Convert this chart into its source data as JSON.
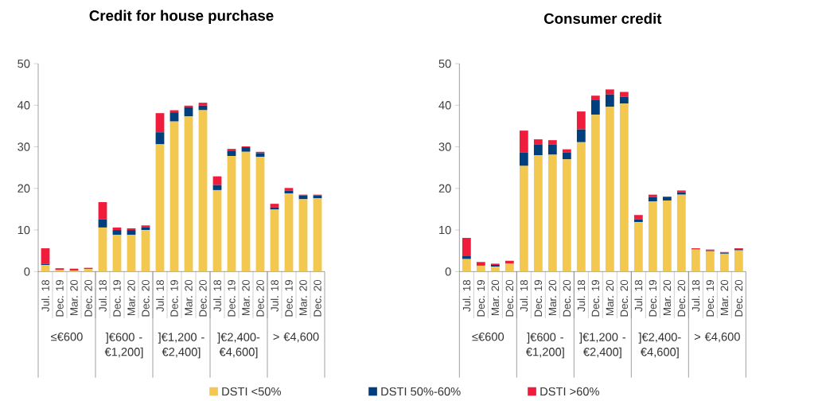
{
  "chart_data": [
    {
      "type": "bar",
      "stacked": true,
      "title": "Credit for house purchase",
      "legend": "bottom",
      "categories": [
        "Jul. 18",
        "Dec. 19",
        "Mar. 20",
        "Dec. 20",
        "Jul. 18",
        "Dec. 19",
        "Mar. 20",
        "Dec. 20",
        "Jul. 18",
        "Dec. 19",
        "Mar. 20",
        "Dec. 20",
        "Jul. 18",
        "Dec. 19",
        "Mar. 20",
        "Dec. 20",
        "Jul. 18",
        "Dec. 19",
        "Mar. 20",
        "Dec. 20"
      ],
      "annotations": [
        "≤€600",
        "]€600 - €1,200]",
        "]€1,200 - €2,400]",
        "]€2,400- €4,600]",
        "> €4,600"
      ],
      "ylim": [
        0,
        50
      ],
      "yticks": [
        0,
        10,
        20,
        30,
        40,
        50
      ],
      "series": [
        {
          "name": "DSTI <50%",
          "color": "#f2c851",
          "values": [
            1.6,
            0.4,
            0.2,
            0.6,
            10.6,
            8.8,
            8.8,
            10.0,
            30.6,
            36.1,
            37.3,
            38.8,
            19.6,
            27.8,
            28.8,
            27.6,
            14.9,
            18.8,
            17.4,
            17.6
          ]
        },
        {
          "name": "DSTI 50%-60%",
          "color": "#003f7d",
          "values": [
            0.3,
            null,
            null,
            null,
            2.0,
            1.2,
            1.2,
            0.6,
            2.9,
            2.2,
            2.2,
            1.1,
            1.2,
            1.3,
            1.1,
            0.9,
            0.5,
            0.7,
            0.9,
            0.7
          ]
        },
        {
          "name": "DSTI >60%",
          "color": "#ef1c3b",
          "values": [
            3.7,
            0.4,
            0.5,
            0.3,
            4.1,
            0.6,
            0.4,
            0.5,
            4.6,
            0.5,
            0.4,
            0.7,
            2.1,
            0.4,
            0.2,
            0.3,
            0.9,
            0.6,
            0.2,
            0.2
          ]
        }
      ]
    },
    {
      "type": "bar",
      "stacked": true,
      "title": "Consumer credit",
      "categories": [
        "Jul. 18",
        "Dec. 19",
        "Mar. 20",
        "Dec. 20",
        "Jul. 18",
        "Dec. 19",
        "Mar. 20",
        "Dec. 20",
        "Jul. 18",
        "Dec. 19",
        "Mar. 20",
        "Dec. 20",
        "Jul. 18",
        "Dec. 19",
        "Mar. 20",
        "Dec. 20",
        "Jul. 18",
        "Dec. 19",
        "Mar. 20",
        "Dec. 20"
      ],
      "annotations": [
        "≤€600",
        "]€600 - €1,200]",
        "]€1,200 - €2,400]",
        "]€2,400- €4,600]",
        "> €4,600"
      ],
      "ylim": [
        0,
        50
      ],
      "yticks": [
        0,
        10,
        20,
        30,
        40,
        50
      ],
      "series": [
        {
          "color": "#f2c851",
          "values": [
            3.0,
            1.4,
            1.2,
            1.9,
            25.4,
            28.0,
            28.1,
            27.0,
            31.1,
            37.7,
            39.6,
            40.4,
            11.9,
            16.9,
            17.1,
            18.5,
            5.3,
            4.9,
            4.3,
            5.1
          ]
        },
        {
          "color": "#003f7d",
          "values": [
            0.7,
            0.1,
            0.4,
            null,
            3.2,
            2.6,
            2.5,
            1.6,
            3.1,
            3.5,
            3.0,
            1.6,
            0.7,
            1.0,
            0.9,
            0.6,
            null,
            0.2,
            0.2,
            0.3
          ]
        },
        {
          "color": "#ef1c3b",
          "values": [
            4.4,
            0.8,
            0.3,
            0.7,
            5.3,
            1.2,
            1.0,
            0.8,
            4.3,
            1.1,
            1.2,
            1.2,
            1.0,
            0.6,
            null,
            0.4,
            0.3,
            0.2,
            0.2,
            0.2
          ]
        }
      ]
    }
  ]
}
